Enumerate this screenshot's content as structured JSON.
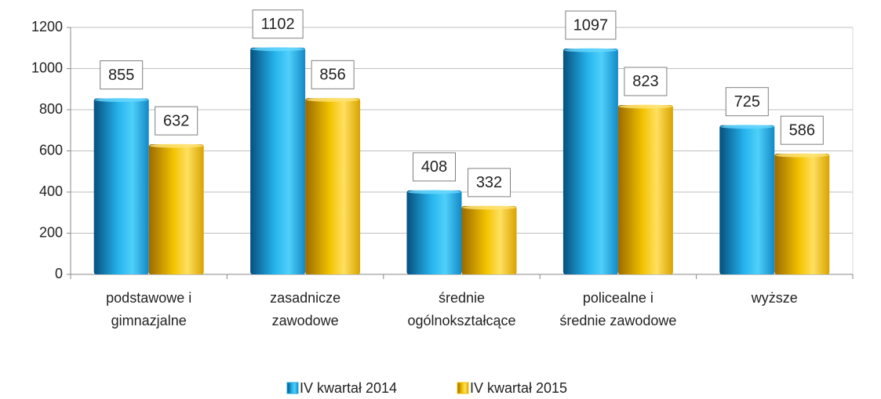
{
  "chart_data": {
    "type": "bar",
    "categories": [
      [
        "podstawowe i",
        "gimnazjalne"
      ],
      [
        "zasadnicze",
        "zawodowe"
      ],
      [
        "średnie",
        "ogólnokształcące"
      ],
      [
        "policealne i",
        "średnie zawodowe"
      ],
      [
        "wyższe"
      ]
    ],
    "series": [
      {
        "name": "IV kwartał 2014",
        "color": "#1ea8e0",
        "values": [
          855,
          1102,
          408,
          1097,
          725
        ]
      },
      {
        "name": "IV kwartał 2015",
        "color": "#f2c200",
        "values": [
          632,
          856,
          332,
          823,
          586
        ]
      }
    ],
    "ylim": [
      0,
      1200
    ],
    "yticks": [
      0,
      200,
      400,
      600,
      800,
      1000,
      1200
    ],
    "grid": true,
    "legend": "bottom"
  }
}
